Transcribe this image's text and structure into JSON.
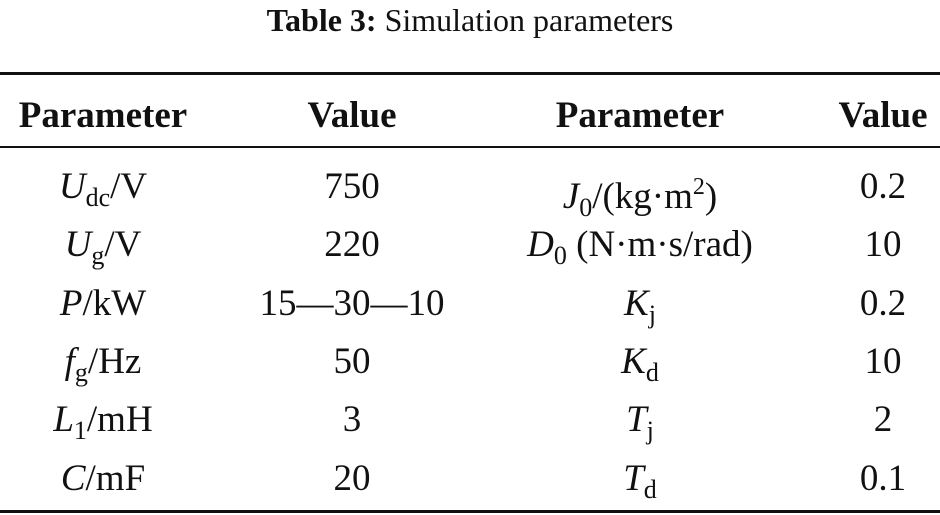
{
  "title": {
    "label": "Table 3:",
    "text": "Simulation parameters"
  },
  "table": {
    "header": [
      "Parameter",
      "Value",
      "Parameter",
      "Value"
    ],
    "rows": [
      [
        [
          {
            "text": "U",
            "style": "italic"
          },
          {
            "text": "dc",
            "style": "sub"
          },
          {
            "text": "/V",
            "style": "normal"
          }
        ],
        "750",
        [
          {
            "text": "J",
            "style": "italic"
          },
          {
            "text": "0",
            "style": "sub"
          },
          {
            "text": "/(kg·m",
            "style": "normal"
          },
          {
            "text": "2",
            "style": "sup"
          },
          {
            "text": ")",
            "style": "normal"
          }
        ],
        "0.2"
      ],
      [
        [
          {
            "text": "U",
            "style": "italic"
          },
          {
            "text": "g",
            "style": "sub"
          },
          {
            "text": "/V",
            "style": "normal"
          }
        ],
        "220",
        [
          {
            "text": "D",
            "style": "italic"
          },
          {
            "text": "0",
            "style": "sub"
          },
          {
            "text": " (N·m·s/rad)",
            "style": "normal"
          }
        ],
        "10"
      ],
      [
        [
          {
            "text": "P",
            "style": "italic"
          },
          {
            "text": "/kW",
            "style": "normal"
          }
        ],
        "15—30—10",
        [
          {
            "text": "K",
            "style": "italic"
          },
          {
            "text": "j",
            "style": "sub"
          }
        ],
        "0.2"
      ],
      [
        [
          {
            "text": "f",
            "style": "italic"
          },
          {
            "text": "g",
            "style": "sub"
          },
          {
            "text": "/Hz",
            "style": "normal"
          }
        ],
        "50",
        [
          {
            "text": "K",
            "style": "italic"
          },
          {
            "text": "d",
            "style": "sub"
          }
        ],
        "10"
      ],
      [
        [
          {
            "text": "L",
            "style": "italic"
          },
          {
            "text": "1",
            "style": "sub"
          },
          {
            "text": "/mH",
            "style": "normal"
          }
        ],
        "3",
        [
          {
            "text": "T",
            "style": "italic"
          },
          {
            "text": "j",
            "style": "sub"
          }
        ],
        "2"
      ],
      [
        [
          {
            "text": "C",
            "style": "italic"
          },
          {
            "text": "/mF",
            "style": "normal"
          }
        ],
        "20",
        [
          {
            "text": "T",
            "style": "italic"
          },
          {
            "text": "d",
            "style": "sub"
          }
        ],
        "0.1"
      ]
    ]
  }
}
